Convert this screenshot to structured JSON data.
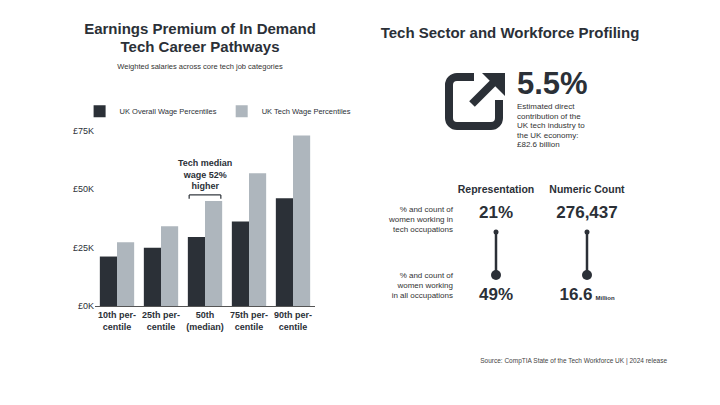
{
  "chart_data": {
    "type": "bar",
    "title": "Earnings Premium of In Demand\nTech Career Pathways",
    "subtitle": "Weighted salaries across core tech job categories",
    "categories": [
      "10th per-\ncentile",
      "25th per-\ncentile",
      "50th\n(median)",
      "75th per-\ncentile",
      "90th per-\ncentile"
    ],
    "series": [
      {
        "name": "UK Overall Wage Percentiles",
        "color": "#2b3037",
        "values": [
          21200,
          25000,
          29600,
          36200,
          46200
        ]
      },
      {
        "name": "UK Tech Wage Percentiles",
        "color": "#aeb6bd",
        "values": [
          27300,
          34200,
          45000,
          56900,
          73100
        ]
      }
    ],
    "ylim": [
      0,
      75000
    ],
    "yticks": [
      {
        "value": 0,
        "label": "£0K"
      },
      {
        "value": 25000,
        "label": "£25K"
      },
      {
        "value": 50000,
        "label": "£50K"
      },
      {
        "value": 75000,
        "label": "£75K"
      }
    ],
    "grid": false,
    "legend": "top left",
    "annotations": [
      {
        "text": "Tech median\nwage 52%\nhigher",
        "category": "50th\n(median)"
      }
    ]
  },
  "panel": {
    "title": "Tech Sector and Workforce Profiling",
    "headline": {
      "value": "5.5%",
      "text": "Estimated direct\ncontribution of the\nUK tech industry to\nthe UK economy:\n£82.6 billion"
    },
    "columns": [
      "Representation",
      "Numeric Count"
    ],
    "rows": [
      {
        "label": "% and count of\nwomen working in\ntech occupations",
        "cells": [
          {
            "text": "21%"
          },
          {
            "text": "276,437"
          }
        ]
      },
      {
        "label": "% and count of\nwomen working\nin all occupations",
        "cells": [
          {
            "text": "49%"
          },
          {
            "text": "16.6",
            "unit": "Million"
          }
        ]
      }
    ]
  },
  "source": "Source: CompTIA State of the Tech Workforce UK | 2024 release"
}
